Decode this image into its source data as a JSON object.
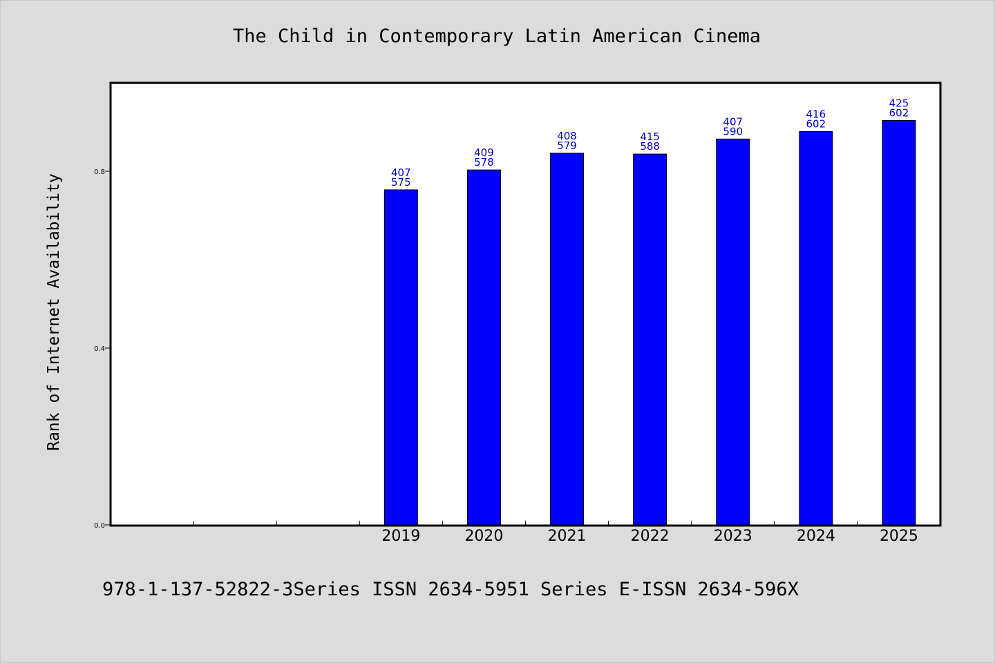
{
  "chart_data": {
    "type": "bar",
    "title": "The Child in Contemporary Latin American Cinema",
    "xlabel": "",
    "ylabel": "Rank of Internet Availability",
    "categories": [
      "",
      "",
      "",
      "2019",
      "2020",
      "2021",
      "2022",
      "2023",
      "2024",
      "2025"
    ],
    "values": [
      null,
      null,
      null,
      0.758,
      0.803,
      0.841,
      0.839,
      0.873,
      0.89,
      0.915
    ],
    "bar_labels": [
      [
        "",
        ""
      ],
      [
        "",
        ""
      ],
      [
        "",
        ""
      ],
      [
        "407",
        "575"
      ],
      [
        "409",
        "578"
      ],
      [
        "408",
        "579"
      ],
      [
        "415",
        "588"
      ],
      [
        "407",
        "590"
      ],
      [
        "416",
        "602"
      ],
      [
        "425",
        "602"
      ]
    ],
    "ylim": [
      0,
      1.0
    ],
    "yticks": [
      0.0,
      0.4,
      0.8
    ],
    "ytick_labels": [
      "0.0",
      "0.4",
      "0.8"
    ],
    "grid": false,
    "bar_color": "#0000ff",
    "label_color": "#0000cc"
  },
  "footer": "978-1-137-52822-3Series ISSN 2634-5951 Series E-ISSN 2634-596X"
}
